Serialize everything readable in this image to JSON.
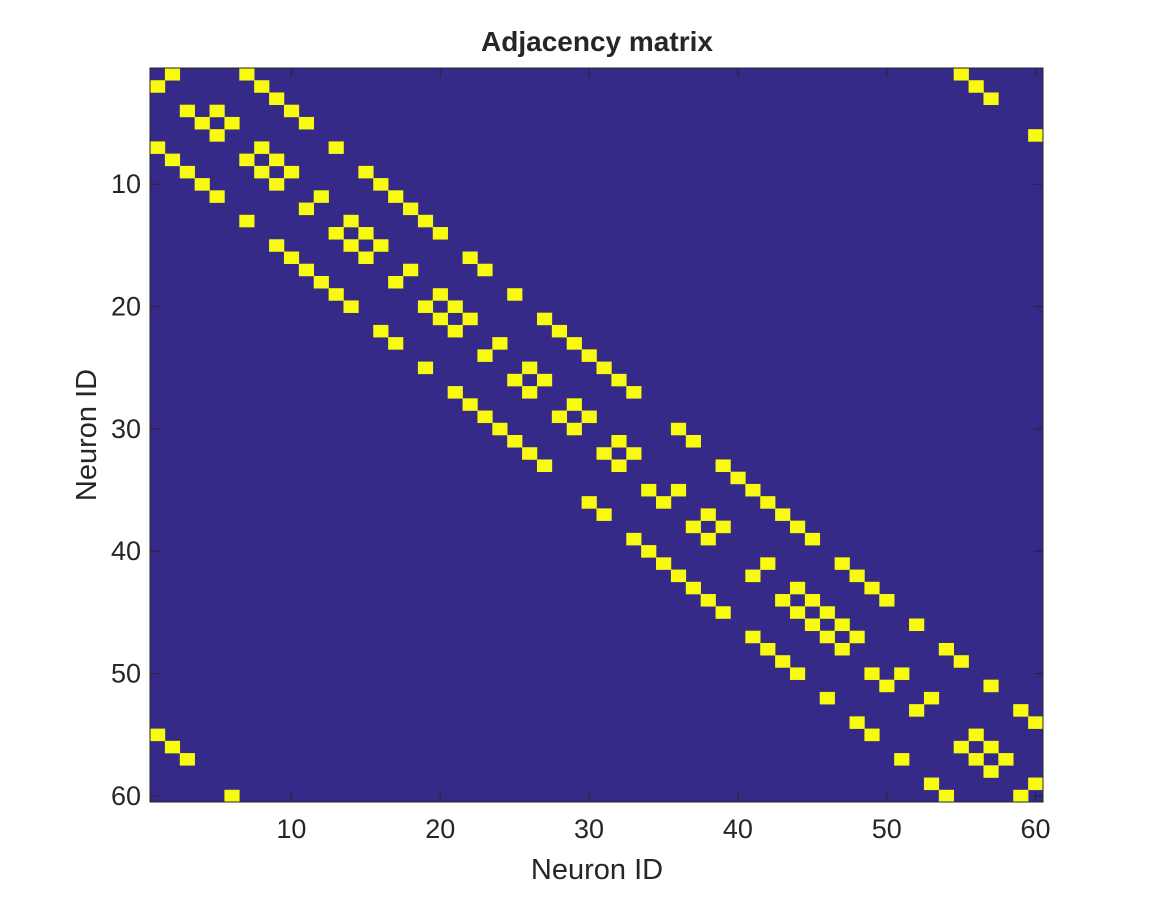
{
  "chart_data": {
    "type": "heatmap",
    "title": "Adjacency matrix",
    "xlabel": "Neuron ID",
    "ylabel": "Neuron ID",
    "size": 60,
    "xlim": [
      0.5,
      60.5
    ],
    "ylim": [
      0.5,
      60.5
    ],
    "y_direction": "reversed",
    "x_ticks": [
      10,
      20,
      30,
      40,
      50,
      60
    ],
    "y_ticks": [
      10,
      20,
      30,
      40,
      50,
      60
    ],
    "colors": {
      "zero": "#352a87",
      "one": "#f9fb0e"
    },
    "cells": [
      {
        "row": 1,
        "cols": [
          2,
          7,
          55
        ]
      },
      {
        "row": 2,
        "cols": [
          1,
          8,
          56
        ]
      },
      {
        "row": 3,
        "cols": [
          9,
          57
        ]
      },
      {
        "row": 4,
        "cols": [
          3,
          5,
          10
        ]
      },
      {
        "row": 5,
        "cols": [
          4,
          6,
          11
        ]
      },
      {
        "row": 6,
        "cols": [
          5,
          60
        ]
      },
      {
        "row": 7,
        "cols": [
          1,
          8,
          13
        ]
      },
      {
        "row": 8,
        "cols": [
          2,
          7,
          9
        ]
      },
      {
        "row": 9,
        "cols": [
          3,
          8,
          10,
          15
        ]
      },
      {
        "row": 10,
        "cols": [
          4,
          9,
          16
        ]
      },
      {
        "row": 11,
        "cols": [
          5,
          12,
          17
        ]
      },
      {
        "row": 12,
        "cols": [
          11,
          18
        ]
      },
      {
        "row": 13,
        "cols": [
          7,
          14,
          19
        ]
      },
      {
        "row": 14,
        "cols": [
          13,
          15,
          20
        ]
      },
      {
        "row": 15,
        "cols": [
          9,
          14,
          16
        ]
      },
      {
        "row": 16,
        "cols": [
          10,
          15,
          22
        ]
      },
      {
        "row": 17,
        "cols": [
          11,
          18,
          23
        ]
      },
      {
        "row": 18,
        "cols": [
          12,
          17
        ]
      },
      {
        "row": 19,
        "cols": [
          13,
          20,
          25
        ]
      },
      {
        "row": 20,
        "cols": [
          14,
          19,
          21
        ]
      },
      {
        "row": 21,
        "cols": [
          20,
          22,
          27
        ]
      },
      {
        "row": 22,
        "cols": [
          16,
          21,
          28
        ]
      },
      {
        "row": 23,
        "cols": [
          17,
          24,
          29
        ]
      },
      {
        "row": 24,
        "cols": [
          23,
          30
        ]
      },
      {
        "row": 25,
        "cols": [
          19,
          26,
          31
        ]
      },
      {
        "row": 26,
        "cols": [
          25,
          27,
          32
        ]
      },
      {
        "row": 27,
        "cols": [
          21,
          26,
          33
        ]
      },
      {
        "row": 28,
        "cols": [
          22,
          29
        ]
      },
      {
        "row": 29,
        "cols": [
          23,
          28,
          30
        ]
      },
      {
        "row": 30,
        "cols": [
          24,
          29,
          36
        ]
      },
      {
        "row": 31,
        "cols": [
          25,
          32,
          37
        ]
      },
      {
        "row": 32,
        "cols": [
          26,
          31,
          33
        ]
      },
      {
        "row": 33,
        "cols": [
          27,
          32,
          39
        ]
      },
      {
        "row": 34,
        "cols": [
          40
        ]
      },
      {
        "row": 35,
        "cols": [
          34,
          36,
          41
        ]
      },
      {
        "row": 36,
        "cols": [
          30,
          35,
          42
        ]
      },
      {
        "row": 37,
        "cols": [
          31,
          38,
          43
        ]
      },
      {
        "row": 38,
        "cols": [
          37,
          39,
          44
        ]
      },
      {
        "row": 39,
        "cols": [
          33,
          38,
          45
        ]
      },
      {
        "row": 40,
        "cols": [
          34
        ]
      },
      {
        "row": 41,
        "cols": [
          35,
          42,
          47
        ]
      },
      {
        "row": 42,
        "cols": [
          36,
          41,
          48
        ]
      },
      {
        "row": 43,
        "cols": [
          37,
          44,
          49
        ]
      },
      {
        "row": 44,
        "cols": [
          38,
          43,
          45,
          50
        ]
      },
      {
        "row": 45,
        "cols": [
          39,
          44,
          46
        ]
      },
      {
        "row": 46,
        "cols": [
          45,
          47,
          52
        ]
      },
      {
        "row": 47,
        "cols": [
          41,
          46,
          48
        ]
      },
      {
        "row": 48,
        "cols": [
          42,
          47,
          54
        ]
      },
      {
        "row": 49,
        "cols": [
          43,
          55
        ]
      },
      {
        "row": 50,
        "cols": [
          44,
          49,
          51
        ]
      },
      {
        "row": 51,
        "cols": [
          50,
          57
        ]
      },
      {
        "row": 52,
        "cols": [
          46,
          53
        ]
      },
      {
        "row": 53,
        "cols": [
          52,
          59
        ]
      },
      {
        "row": 54,
        "cols": [
          48,
          60
        ]
      },
      {
        "row": 55,
        "cols": [
          1,
          49,
          56
        ]
      },
      {
        "row": 56,
        "cols": [
          2,
          55,
          57
        ]
      },
      {
        "row": 57,
        "cols": [
          3,
          51,
          56,
          58
        ]
      },
      {
        "row": 58,
        "cols": [
          57
        ]
      },
      {
        "row": 59,
        "cols": [
          53,
          60
        ]
      },
      {
        "row": 60,
        "cols": [
          6,
          54,
          59
        ]
      }
    ]
  }
}
